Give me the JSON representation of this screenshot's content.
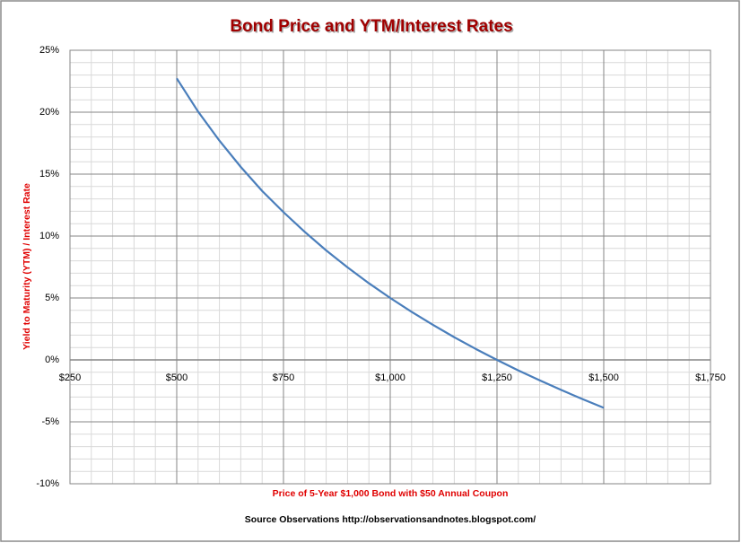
{
  "chart_data": {
    "type": "line",
    "title": "Bond Price and YTM/Interest Rates",
    "x_label": "Price of 5-Year $1,000 Bond with $50 Annual Coupon",
    "y_label": "Yield to Maturity (YTM) / Interest Rate",
    "source": "Source Observations  http://observationsandnotes.blogspot.com/",
    "x": [
      500,
      550,
      600,
      650,
      700,
      750,
      800,
      850,
      900,
      950,
      1000,
      1050,
      1100,
      1150,
      1200,
      1250,
      1300,
      1350,
      1400,
      1450,
      1500
    ],
    "series": [
      {
        "name": "YTM",
        "color": "#4a7ebb",
        "values": [
          22.73,
          20.05,
          17.7,
          15.58,
          13.64,
          11.93,
          10.33,
          8.84,
          7.47,
          6.19,
          5,
          3.88,
          2.83,
          1.83,
          0.89,
          0,
          -0.85,
          -1.65,
          -2.42,
          -3.16,
          -3.87
        ]
      }
    ],
    "xlim": [
      250,
      1750
    ],
    "xticks": [
      {
        "value": 250,
        "label": "$250"
      },
      {
        "value": 500,
        "label": "$500"
      },
      {
        "value": 750,
        "label": "$750"
      },
      {
        "value": 1000,
        "label": "$1,000"
      },
      {
        "value": 1250,
        "label": "$1,250"
      },
      {
        "value": 1500,
        "label": "$1,500"
      },
      {
        "value": 1750,
        "label": "$1,750"
      }
    ],
    "ylim": [
      -10,
      25
    ],
    "yticks": [
      {
        "value": -10,
        "label": "-10%"
      },
      {
        "value": -5,
        "label": "-5%"
      },
      {
        "value": 0,
        "label": "0%"
      },
      {
        "value": 5,
        "label": "5%"
      },
      {
        "value": 10,
        "label": "10%"
      },
      {
        "value": 15,
        "label": "15%"
      },
      {
        "value": 20,
        "label": "20%"
      },
      {
        "value": 25,
        "label": "25%"
      }
    ],
    "grid": true,
    "minor_divisions": [
      5,
      5
    ]
  }
}
